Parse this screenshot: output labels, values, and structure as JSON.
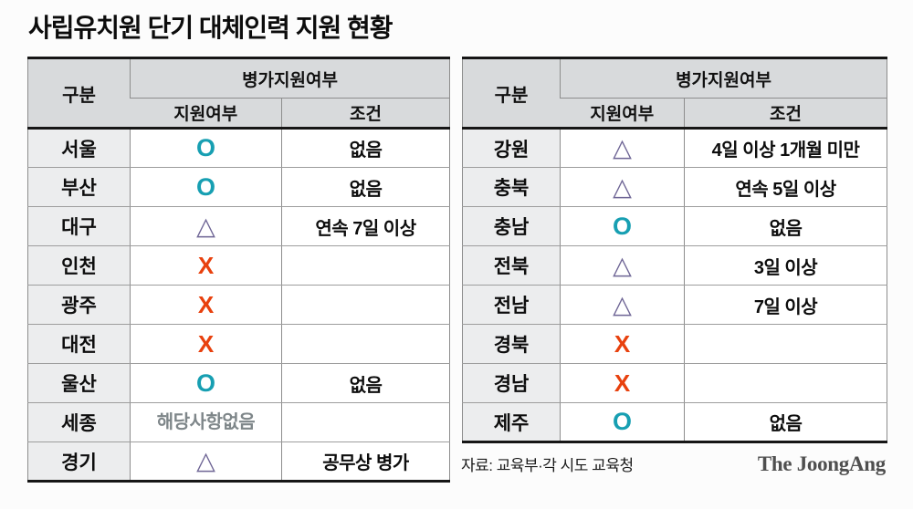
{
  "title": "사립유치원 단기 대체인력 지원 현황",
  "header": {
    "category": "구분",
    "group": "병가지원여부",
    "support": "지원여부",
    "condition": "조건"
  },
  "tables": [
    {
      "rows": [
        {
          "region": "서울",
          "mark": "O",
          "condition": "없음"
        },
        {
          "region": "부산",
          "mark": "O",
          "condition": "없음"
        },
        {
          "region": "대구",
          "mark": "△",
          "condition": "연속 7일 이상"
        },
        {
          "region": "인천",
          "mark": "X",
          "condition": ""
        },
        {
          "region": "광주",
          "mark": "X",
          "condition": ""
        },
        {
          "region": "대전",
          "mark": "X",
          "condition": ""
        },
        {
          "region": "울산",
          "mark": "O",
          "condition": "없음"
        },
        {
          "region": "세종",
          "mark": "해당사항없음",
          "condition": ""
        },
        {
          "region": "경기",
          "mark": "△",
          "condition": "공무상 병가"
        }
      ]
    },
    {
      "rows": [
        {
          "region": "강원",
          "mark": "△",
          "condition": "4일 이상 1개월 미만"
        },
        {
          "region": "충북",
          "mark": "△",
          "condition": "연속 5일 이상"
        },
        {
          "region": "충남",
          "mark": "O",
          "condition": "없음"
        },
        {
          "region": "전북",
          "mark": "△",
          "condition": "3일 이상"
        },
        {
          "region": "전남",
          "mark": "△",
          "condition": "7일 이상"
        },
        {
          "region": "경북",
          "mark": "X",
          "condition": ""
        },
        {
          "region": "경남",
          "mark": "X",
          "condition": ""
        },
        {
          "region": "제주",
          "mark": "O",
          "condition": "없음"
        }
      ]
    }
  ],
  "footer": {
    "source": "자료: 교육부·각 시도 교육청",
    "logo": "The JoongAng"
  },
  "colors": {
    "o_mark": "#179fb2",
    "x_mark": "#e8410e",
    "triangle_mark": "#6e6595",
    "na_text": "#7e8689",
    "header_bg": "#d8dadc",
    "region_bg": "#ecedee"
  },
  "chart_data": {
    "type": "table",
    "title": "사립유치원 단기 대체인력 지원 현황",
    "columns": [
      "구분",
      "지원여부",
      "조건"
    ],
    "rows": [
      [
        "서울",
        "O",
        "없음"
      ],
      [
        "부산",
        "O",
        "없음"
      ],
      [
        "대구",
        "△",
        "연속 7일 이상"
      ],
      [
        "인천",
        "X",
        ""
      ],
      [
        "광주",
        "X",
        ""
      ],
      [
        "대전",
        "X",
        ""
      ],
      [
        "울산",
        "O",
        "없음"
      ],
      [
        "세종",
        "해당사항없음",
        ""
      ],
      [
        "경기",
        "△",
        "공무상 병가"
      ],
      [
        "강원",
        "△",
        "4일 이상 1개월 미만"
      ],
      [
        "충북",
        "△",
        "연속 5일 이상"
      ],
      [
        "충남",
        "O",
        "없음"
      ],
      [
        "전북",
        "△",
        "3일 이상"
      ],
      [
        "전남",
        "△",
        "7일 이상"
      ],
      [
        "경북",
        "X",
        ""
      ],
      [
        "경남",
        "X",
        ""
      ],
      [
        "제주",
        "O",
        "없음"
      ]
    ],
    "source": "자료: 교육부·각 시도 교육청"
  }
}
